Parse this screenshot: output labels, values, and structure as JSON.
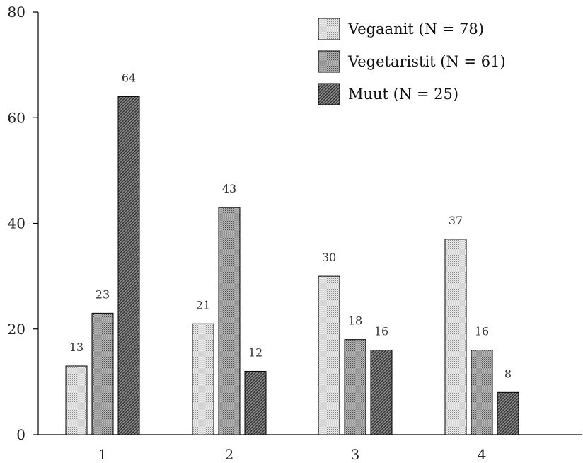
{
  "chart_data": {
    "type": "bar",
    "categories": [
      "1",
      "2",
      "3",
      "4"
    ],
    "series": [
      {
        "name": "Vegaanit (N = 78)",
        "values": [
          13,
          21,
          30,
          37
        ],
        "pattern": "light-dots",
        "color": "#d6d6d6"
      },
      {
        "name": "Vegetaristit (N = 61)",
        "values": [
          23,
          43,
          18,
          16
        ],
        "pattern": "medium-dots",
        "color": "#a8a8a8"
      },
      {
        "name": "Muut (N = 25)",
        "values": [
          64,
          12,
          16,
          8
        ],
        "pattern": "dark-hatch",
        "color": "#6e6e6e"
      }
    ],
    "yticks": [
      0,
      20,
      40,
      60,
      80
    ],
    "ylim": [
      0,
      80
    ],
    "title": "",
    "xlabel": "",
    "ylabel": "",
    "grid": false,
    "legend_position": "top-right",
    "data_labels": true
  }
}
